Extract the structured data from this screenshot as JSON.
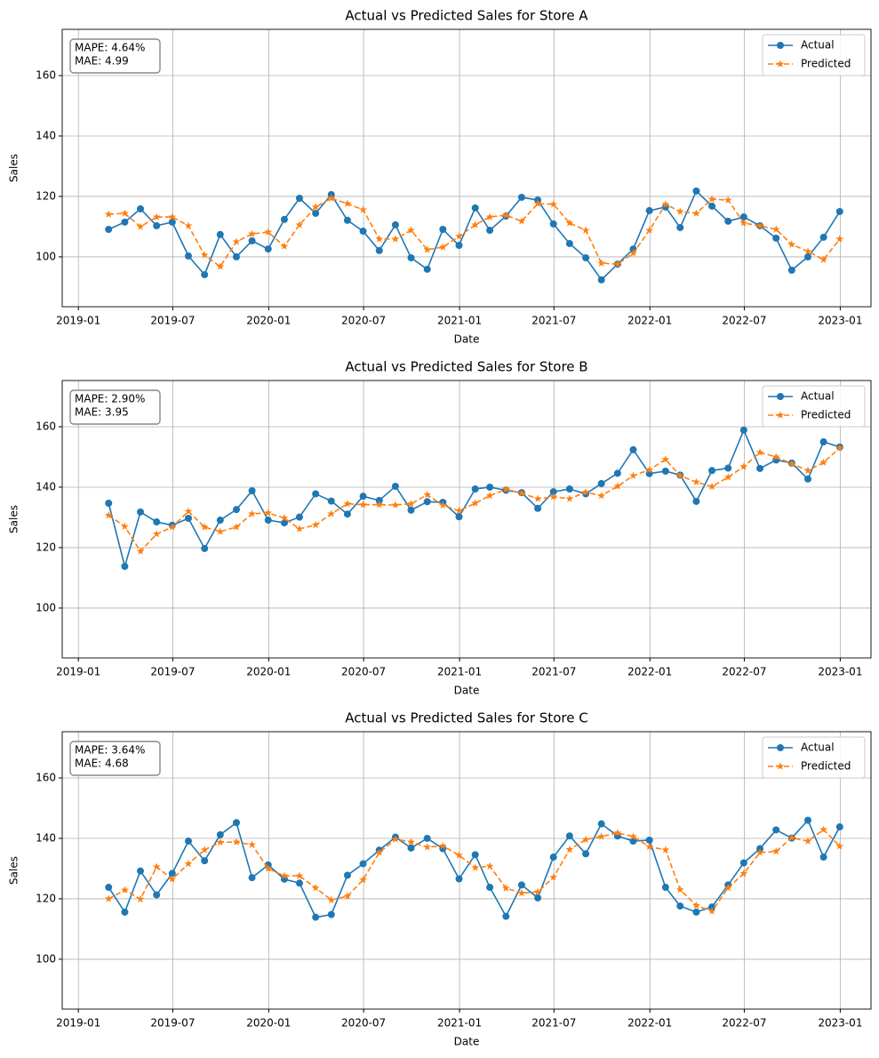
{
  "chart_data": [
    {
      "type": "line",
      "title": "Actual vs Predicted Sales for Store A",
      "xlabel": "Date",
      "ylabel": "Sales",
      "annotation_lines": [
        "MAPE: 4.64%",
        "MAE: 4.99"
      ],
      "x": [
        "2019-02",
        "2019-03",
        "2019-04",
        "2019-05",
        "2019-06",
        "2019-07",
        "2019-08",
        "2019-09",
        "2019-10",
        "2019-11",
        "2019-12",
        "2020-01",
        "2020-02",
        "2020-03",
        "2020-04",
        "2020-05",
        "2020-06",
        "2020-07",
        "2020-08",
        "2020-09",
        "2020-10",
        "2020-11",
        "2020-12",
        "2021-01",
        "2021-02",
        "2021-03",
        "2021-04",
        "2021-05",
        "2021-06",
        "2021-07",
        "2021-08",
        "2021-09",
        "2021-10",
        "2021-11",
        "2021-12",
        "2022-01",
        "2022-02",
        "2022-03",
        "2022-04",
        "2022-05",
        "2022-06",
        "2022-07",
        "2022-08",
        "2022-09",
        "2022-10",
        "2022-11",
        "2022-12"
      ],
      "series": [
        {
          "name": "Actual",
          "color": "#1f77b4",
          "marker": "circle",
          "dashed": false,
          "values": [
            109.1,
            111.5,
            115.9,
            110.3,
            111.5,
            100.3,
            94.1,
            107.4,
            100,
            105.3,
            102.6,
            112.4,
            119.4,
            114.4,
            120.6,
            112.1,
            108.5,
            102.1,
            110.6,
            99.7,
            95.9,
            109.1,
            103.8,
            116.2,
            108.8,
            113.5,
            119.7,
            118.8,
            110.9,
            104.4,
            99.7,
            92.4,
            97.6,
            102.6,
            115.3,
            116.5,
            109.7,
            121.8,
            116.8,
            111.8,
            113.2,
            110.3,
            106.2,
            95.6,
            100,
            106.5,
            115
          ]
        },
        {
          "name": "Predicted",
          "color": "#ff7f0e",
          "marker": "star",
          "dashed": true,
          "values": [
            114.1,
            114.4,
            110,
            113.2,
            113.2,
            110.3,
            100.6,
            96.8,
            105,
            107.6,
            108.2,
            103.5,
            110.6,
            116.5,
            119.4,
            117.6,
            115.6,
            105.9,
            105.9,
            108.8,
            102.4,
            103.2,
            106.8,
            110.6,
            113.2,
            113.8,
            111.8,
            117.6,
            117.4,
            111.2,
            108.8,
            97.9,
            97.6,
            101.2,
            108.8,
            117.4,
            115,
            114.4,
            119.1,
            118.8,
            111.2,
            110.3,
            109.1,
            104.1,
            101.8,
            99.1,
            105.9
          ]
        }
      ],
      "xlim": [
        "2018-12",
        "2023-03"
      ],
      "xticks": [
        "2019-01",
        "2019-07",
        "2020-01",
        "2020-07",
        "2021-01",
        "2021-07",
        "2022-01",
        "2022-07",
        "2023-01"
      ],
      "ylim": [
        83.5,
        175.3
      ],
      "yticks": [
        100,
        120,
        140,
        160
      ],
      "grid": true,
      "legend": "upper right"
    },
    {
      "type": "line",
      "title": "Actual vs Predicted Sales for Store B",
      "xlabel": "Date",
      "ylabel": "Sales",
      "annotation_lines": [
        "MAPE: 2.90%",
        "MAE: 3.95"
      ],
      "x": [
        "2019-02",
        "2019-03",
        "2019-04",
        "2019-05",
        "2019-06",
        "2019-07",
        "2019-08",
        "2019-09",
        "2019-10",
        "2019-11",
        "2019-12",
        "2020-01",
        "2020-02",
        "2020-03",
        "2020-04",
        "2020-05",
        "2020-06",
        "2020-07",
        "2020-08",
        "2020-09",
        "2020-10",
        "2020-11",
        "2020-12",
        "2021-01",
        "2021-02",
        "2021-03",
        "2021-04",
        "2021-05",
        "2021-06",
        "2021-07",
        "2021-08",
        "2021-09",
        "2021-10",
        "2021-11",
        "2021-12",
        "2022-01",
        "2022-02",
        "2022-03",
        "2022-04",
        "2022-05",
        "2022-06",
        "2022-07",
        "2022-08",
        "2022-09",
        "2022-10",
        "2022-11",
        "2022-12"
      ],
      "series": [
        {
          "name": "Actual",
          "color": "#1f77b4",
          "marker": "circle",
          "dashed": false,
          "values": [
            134.7,
            113.8,
            131.8,
            128.5,
            127.4,
            129.7,
            119.7,
            129.1,
            132.6,
            138.8,
            129.1,
            128.2,
            130.1,
            137.8,
            135.4,
            131.1,
            137,
            135.6,
            140.3,
            132.4,
            135.2,
            135,
            130.2,
            139.4,
            140,
            139,
            138.2,
            133,
            138.5,
            139.4,
            137.8,
            141.2,
            144.6,
            152.4,
            144.5,
            145.3,
            144,
            135.3,
            145.5,
            146.3,
            158.9,
            146.2,
            149,
            148,
            142.7,
            155,
            153.3
          ]
        },
        {
          "name": "Predicted",
          "color": "#ff7f0e",
          "marker": "star",
          "dashed": true,
          "values": [
            130.7,
            127,
            118.8,
            124.5,
            126.8,
            132,
            126.8,
            125.3,
            126.8,
            131.2,
            131.5,
            129.8,
            126.2,
            127.5,
            131.2,
            134.5,
            134.2,
            134.2,
            134.1,
            134.5,
            137.5,
            134,
            132.2,
            134.7,
            137.2,
            139.3,
            138,
            136.2,
            136.8,
            136.2,
            138.3,
            137.2,
            140.3,
            143.8,
            145.7,
            149.2,
            143.8,
            141.7,
            140.2,
            143.3,
            146.8,
            151.5,
            150,
            147.8,
            145.5,
            148.2,
            153
          ]
        }
      ],
      "xlim": [
        "2018-12",
        "2023-03"
      ],
      "xticks": [
        "2019-01",
        "2019-07",
        "2020-01",
        "2020-07",
        "2021-01",
        "2021-07",
        "2022-01",
        "2022-07",
        "2023-01"
      ],
      "ylim": [
        83.5,
        175.3
      ],
      "yticks": [
        100,
        120,
        140,
        160
      ],
      "grid": true,
      "legend": "upper right"
    },
    {
      "type": "line",
      "title": "Actual vs Predicted Sales for Store C",
      "xlabel": "Date",
      "ylabel": "Sales",
      "annotation_lines": [
        "MAPE: 3.64%",
        "MAE: 4.68"
      ],
      "x": [
        "2019-02",
        "2019-03",
        "2019-04",
        "2019-05",
        "2019-06",
        "2019-07",
        "2019-08",
        "2019-09",
        "2019-10",
        "2019-11",
        "2019-12",
        "2020-01",
        "2020-02",
        "2020-03",
        "2020-04",
        "2020-05",
        "2020-06",
        "2020-07",
        "2020-08",
        "2020-09",
        "2020-10",
        "2020-11",
        "2020-12",
        "2021-01",
        "2021-02",
        "2021-03",
        "2021-04",
        "2021-05",
        "2021-06",
        "2021-07",
        "2021-08",
        "2021-09",
        "2021-10",
        "2021-11",
        "2021-12",
        "2022-01",
        "2022-02",
        "2022-03",
        "2022-04",
        "2022-05",
        "2022-06",
        "2022-07",
        "2022-08",
        "2022-09",
        "2022-10",
        "2022-11",
        "2022-12"
      ],
      "series": [
        {
          "name": "Actual",
          "color": "#1f77b4",
          "marker": "circle",
          "dashed": false,
          "values": [
            123.8,
            115.6,
            129.2,
            121.3,
            128.4,
            139.1,
            132.6,
            141.2,
            145.2,
            127,
            131.2,
            126.5,
            125.2,
            113.9,
            114.8,
            127.8,
            131.6,
            136.1,
            140.4,
            136.8,
            140,
            136.6,
            126.6,
            134.6,
            123.8,
            114.2,
            124.6,
            120.3,
            133.8,
            140.8,
            134.9,
            144.8,
            140.8,
            139.1,
            139.4,
            123.8,
            117.6,
            115.6,
            117.3,
            124.6,
            131.9,
            136.6,
            142.8,
            140.1,
            146,
            133.8,
            143.8
          ]
        },
        {
          "name": "Predicted",
          "color": "#ff7f0e",
          "marker": "star",
          "dashed": true,
          "values": [
            120,
            122.9,
            119.9,
            130.6,
            126.5,
            131.6,
            136.2,
            138.7,
            138.8,
            137.9,
            130,
            127.6,
            127.6,
            123.6,
            119.6,
            120.9,
            126.3,
            135.3,
            139.7,
            138.8,
            137.1,
            137.5,
            134.4,
            130.3,
            130.8,
            123.5,
            121.9,
            122.3,
            127.1,
            136.3,
            139.6,
            140.6,
            141.8,
            140.6,
            137.2,
            136.2,
            123,
            117.8,
            115.9,
            123.6,
            128.4,
            135.3,
            135.7,
            140.2,
            139.1,
            142.9,
            137.4
          ]
        }
      ],
      "xlim": [
        "2018-12",
        "2023-03"
      ],
      "xticks": [
        "2019-01",
        "2019-07",
        "2020-01",
        "2020-07",
        "2021-01",
        "2021-07",
        "2022-01",
        "2022-07",
        "2023-01"
      ],
      "ylim": [
        83.5,
        175.3
      ],
      "yticks": [
        100,
        120,
        140,
        160
      ],
      "grid": true,
      "legend": "upper right"
    }
  ]
}
